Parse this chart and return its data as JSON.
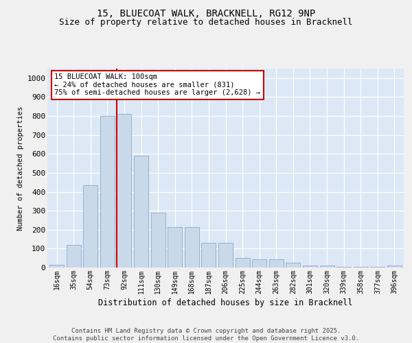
{
  "title_line1": "15, BLUECOAT WALK, BRACKNELL, RG12 9NP",
  "title_line2": "Size of property relative to detached houses in Bracknell",
  "xlabel": "Distribution of detached houses by size in Bracknell",
  "ylabel": "Number of detached properties",
  "categories": [
    "16sqm",
    "35sqm",
    "54sqm",
    "73sqm",
    "92sqm",
    "111sqm",
    "130sqm",
    "149sqm",
    "168sqm",
    "187sqm",
    "206sqm",
    "225sqm",
    "244sqm",
    "263sqm",
    "282sqm",
    "301sqm",
    "320sqm",
    "339sqm",
    "358sqm",
    "377sqm",
    "396sqm"
  ],
  "values": [
    15,
    120,
    435,
    800,
    810,
    590,
    290,
    215,
    215,
    130,
    130,
    50,
    45,
    45,
    25,
    10,
    10,
    5,
    5,
    2,
    10
  ],
  "bar_color": "#c9d9ea",
  "bar_edge_color": "#8aaac8",
  "highlight_color": "#cc0000",
  "annotation_text": "15 BLUECOAT WALK: 100sqm\n← 24% of detached houses are smaller (831)\n75% of semi-detached houses are larger (2,628) →",
  "annotation_box_facecolor": "#ffffff",
  "annotation_box_edgecolor": "#cc0000",
  "ylim": [
    0,
    1050
  ],
  "yticks": [
    0,
    100,
    200,
    300,
    400,
    500,
    600,
    700,
    800,
    900,
    1000
  ],
  "plot_bg_color": "#dce8f5",
  "fig_bg_color": "#f0f0f0",
  "grid_color": "#ffffff",
  "footer_line1": "Contains HM Land Registry data © Crown copyright and database right 2025.",
  "footer_line2": "Contains public sector information licensed under the Open Government Licence v3.0."
}
